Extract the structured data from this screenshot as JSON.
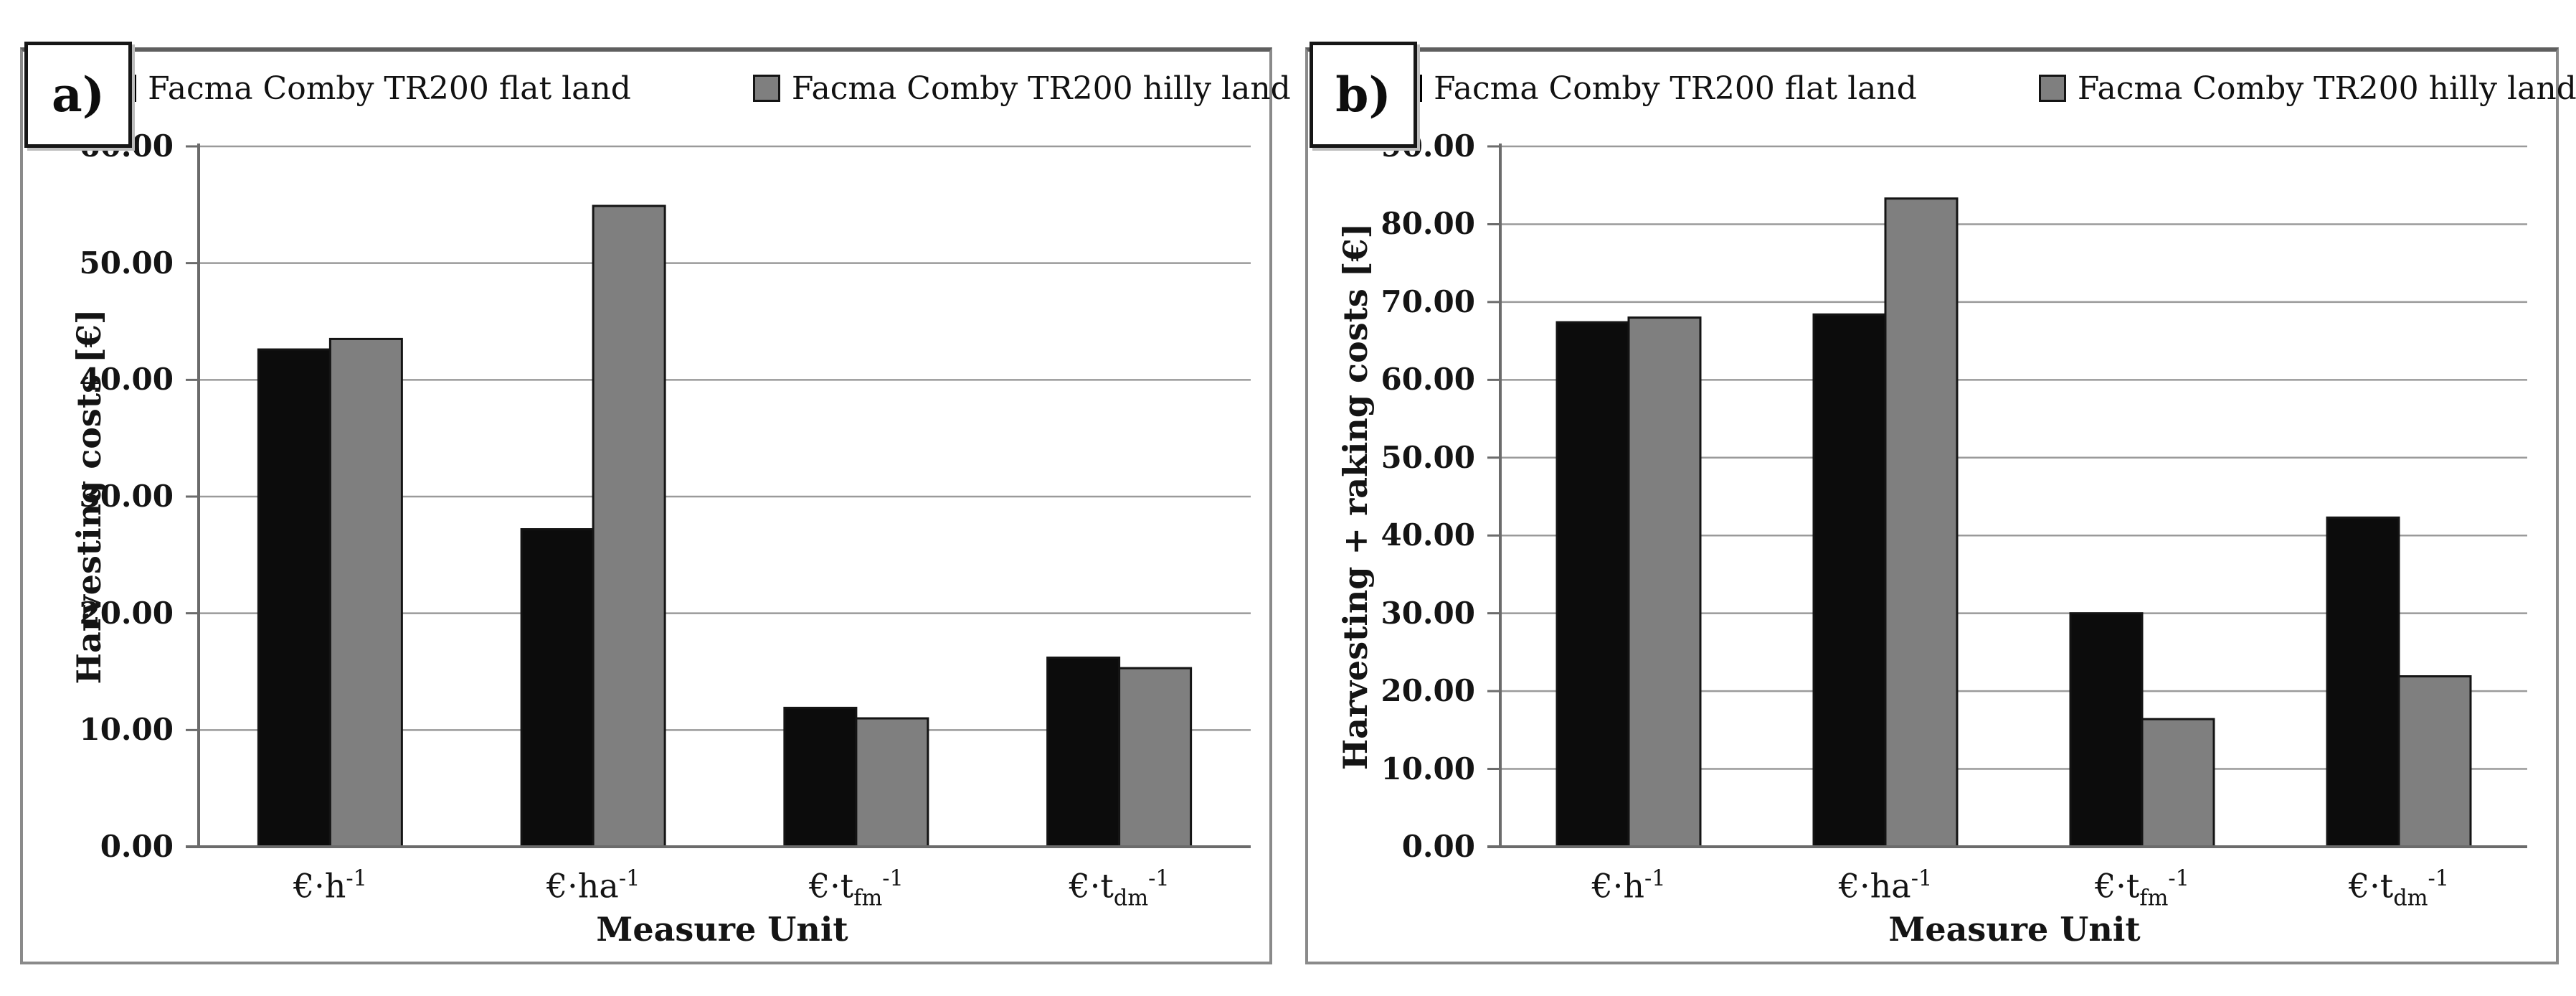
{
  "figure": {
    "panels": [
      {
        "label": "a)",
        "legend": [
          {
            "name": "Facma Comby TR200 flat land",
            "color": "#0c0c0c",
            "border": "#000000"
          },
          {
            "name": "Facma Comby TR200 hilly land",
            "color": "#7f7f7f",
            "border": "#141414"
          }
        ]
      },
      {
        "label": "b)",
        "legend": [
          {
            "name": "Facma Comby TR200 flat land",
            "color": "#0c0c0c",
            "border": "#000000"
          },
          {
            "name": "Facma Comby TR200 hilly land",
            "color": "#7f7f7f",
            "border": "#141414"
          }
        ]
      }
    ]
  },
  "chart_data": [
    {
      "type": "bar",
      "title": "",
      "xlabel": "Measure Unit",
      "ylabel": "Harvesting costs [€]",
      "ylim": [
        0,
        60
      ],
      "ytick_step": 10,
      "ytick_labels": [
        "0.00",
        "10.00",
        "20.00",
        "30.00",
        "40.00",
        "50.00",
        "60.00"
      ],
      "grid": true,
      "legend_position": "top",
      "categories_display": [
        "€·h⁻¹",
        "€·ha⁻¹",
        "€·tfm⁻¹",
        "€·tdm⁻¹"
      ],
      "categories": [
        {
          "base": "€·h",
          "sub": "",
          "sup": "-1"
        },
        {
          "base": "€·ha",
          "sub": "",
          "sup": "-1"
        },
        {
          "base": "€·t",
          "sub": "fm",
          "sup": "-1"
        },
        {
          "base": "€·t",
          "sub": "dm",
          "sup": "-1"
        }
      ],
      "series": [
        {
          "name": "Facma Comby TR200 flat land",
          "color": "#0c0c0c",
          "values": [
            42.6,
            27.2,
            11.9,
            16.2
          ]
        },
        {
          "name": "Facma Comby TR200 hilly land",
          "color": "#7f7f7f",
          "values": [
            43.5,
            54.9,
            11.0,
            15.3
          ]
        }
      ]
    },
    {
      "type": "bar",
      "title": "",
      "xlabel": "Measure Unit",
      "ylabel": "Harvesting + raking costs [€]",
      "ylim": [
        0,
        90
      ],
      "ytick_step": 10,
      "ytick_labels": [
        "0.00",
        "10.00",
        "20.00",
        "30.00",
        "40.00",
        "50.00",
        "60.00",
        "70.00",
        "80.00",
        "90.00"
      ],
      "grid": true,
      "legend_position": "top",
      "categories_display": [
        "€·h⁻¹",
        "€·ha⁻¹",
        "€·tfm⁻¹",
        "€·tdm⁻¹"
      ],
      "categories": [
        {
          "base": "€·h",
          "sub": "",
          "sup": "-1"
        },
        {
          "base": "€·ha",
          "sub": "",
          "sup": "-1"
        },
        {
          "base": "€·t",
          "sub": "fm",
          "sup": "-1"
        },
        {
          "base": "€·t",
          "sub": "dm",
          "sup": "-1"
        }
      ],
      "series": [
        {
          "name": "Facma Comby TR200 flat land",
          "color": "#0c0c0c",
          "values": [
            67.4,
            68.4,
            30.0,
            42.3
          ]
        },
        {
          "name": "Facma Comby TR200 hilly land",
          "color": "#7f7f7f",
          "values": [
            68.0,
            83.3,
            16.4,
            21.9
          ]
        }
      ]
    }
  ],
  "style": {
    "gridline_color": "#9a9a9a",
    "axis_color": "#6b6b6b",
    "bar_outline_color": "#141414"
  }
}
